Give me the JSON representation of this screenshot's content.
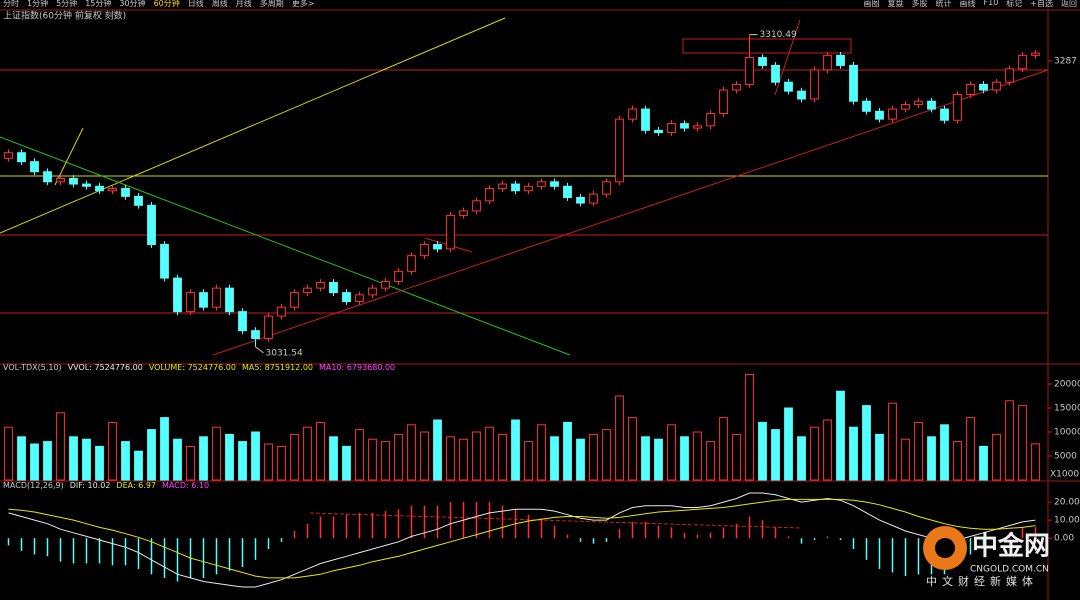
{
  "toolbar": {
    "periods": [
      "分时",
      "1分钟",
      "5分钟",
      "15分钟",
      "30分钟",
      "60分钟",
      "日线",
      "周线",
      "月线",
      "多周期",
      "更多>"
    ],
    "tools": [
      "画图",
      "复盘",
      "多股",
      "统计",
      "画线",
      "F10",
      "标记",
      "+自选",
      "返回"
    ]
  },
  "chart_data": [
    {
      "type": "candlestick",
      "title": "上证指数(60分钟 前复权 刻数)",
      "up_color": "#ff3232",
      "down_color": "#54ffff",
      "open": [
        3200,
        3205,
        3197,
        3188,
        3179,
        3182,
        3177,
        3175,
        3171,
        3173,
        3166,
        3158,
        3123,
        3093,
        3063,
        3080,
        3067,
        3084,
        3063,
        3046,
        3039,
        3059,
        3067,
        3080,
        3084,
        3089,
        3080,
        3072,
        3078,
        3084,
        3090,
        3099,
        3113,
        3123,
        3119,
        3149,
        3153,
        3162,
        3173,
        3177,
        3171,
        3175,
        3179,
        3175,
        3165,
        3160,
        3168,
        3179,
        3235,
        3244,
        3225,
        3223,
        3231,
        3227,
        3229,
        3240,
        3261,
        3266,
        3290,
        3283,
        3268,
        3260,
        3253,
        3279,
        3292,
        3283,
        3251,
        3242,
        3235,
        3244,
        3248,
        3251,
        3244,
        3234,
        3257,
        3266,
        3261,
        3268,
        3280,
        3292
      ],
      "high": [
        3208,
        3208,
        3200,
        3191,
        3185,
        3185,
        3180,
        3178,
        3176,
        3176,
        3169,
        3161,
        3126,
        3096,
        3083,
        3083,
        3087,
        3087,
        3066,
        3049,
        3062,
        3070,
        3083,
        3087,
        3092,
        3092,
        3083,
        3081,
        3087,
        3093,
        3102,
        3116,
        3126,
        3126,
        3152,
        3156,
        3165,
        3176,
        3180,
        3180,
        3178,
        3182,
        3182,
        3178,
        3168,
        3171,
        3182,
        3238,
        3247,
        3247,
        3228,
        3234,
        3234,
        3232,
        3243,
        3264,
        3269,
        3310.49,
        3293,
        3286,
        3271,
        3263,
        3282,
        3295,
        3295,
        3286,
        3254,
        3245,
        3247,
        3251,
        3254,
        3254,
        3247,
        3260,
        3269,
        3269,
        3271,
        3283,
        3295,
        3297
      ],
      "low": [
        3197,
        3194,
        3185,
        3176,
        3176,
        3174,
        3172,
        3168,
        3168,
        3163,
        3155,
        3120,
        3090,
        3060,
        3060,
        3064,
        3064,
        3060,
        3043,
        3031.54,
        3036,
        3056,
        3064,
        3077,
        3081,
        3077,
        3069,
        3069,
        3075,
        3081,
        3087,
        3096,
        3110,
        3116,
        3116,
        3146,
        3150,
        3159,
        3170,
        3168,
        3168,
        3172,
        3172,
        3162,
        3157,
        3157,
        3165,
        3176,
        3232,
        3222,
        3220,
        3220,
        3224,
        3224,
        3226,
        3237,
        3258,
        3263,
        3280,
        3265,
        3257,
        3250,
        3250,
        3276,
        3280,
        3248,
        3239,
        3232,
        3232,
        3241,
        3245,
        3241,
        3231,
        3231,
        3254,
        3258,
        3258,
        3265,
        3277,
        3289
      ],
      "close": [
        3205,
        3197,
        3188,
        3179,
        3182,
        3177,
        3175,
        3171,
        3173,
        3166,
        3158,
        3123,
        3093,
        3063,
        3080,
        3067,
        3084,
        3063,
        3046,
        3039,
        3059,
        3067,
        3080,
        3084,
        3089,
        3080,
        3072,
        3078,
        3084,
        3090,
        3099,
        3113,
        3123,
        3119,
        3149,
        3153,
        3162,
        3173,
        3177,
        3171,
        3175,
        3179,
        3175,
        3165,
        3160,
        3168,
        3179,
        3235,
        3244,
        3225,
        3223,
        3231,
        3227,
        3229,
        3240,
        3261,
        3266,
        3290,
        3283,
        3268,
        3260,
        3253,
        3279,
        3292,
        3283,
        3251,
        3242,
        3235,
        3244,
        3248,
        3251,
        3244,
        3234,
        3257,
        3266,
        3261,
        3268,
        3280,
        3292,
        3294
      ],
      "ylim": [
        3018,
        3320
      ],
      "yticks": [
        3287
      ],
      "annotations": [
        {
          "text": "3310.49",
          "value": 3310.49
        },
        {
          "text": "3031.54",
          "value": 3031.54
        }
      ]
    },
    {
      "type": "bar",
      "header": [
        "VOL-TDX(5,10)",
        "VVOL: 7524776.00",
        "VOLUME: 7524776.00",
        "MA5: 8751912.00",
        "MA10: 6793680.00"
      ],
      "unit_label": "X1000",
      "values": [
        11000,
        9000,
        7500,
        8000,
        14000,
        9000,
        8500,
        7000,
        12000,
        8000,
        6000,
        10500,
        13000,
        8500,
        7000,
        9000,
        11000,
        9500,
        8000,
        10000,
        7500,
        7000,
        9500,
        11000,
        12000,
        9000,
        7000,
        10500,
        8500,
        8000,
        9500,
        11500,
        10000,
        12500,
        9000,
        8500,
        10000,
        11000,
        9500,
        12500,
        8000,
        11500,
        9000,
        12000,
        8500,
        9500,
        10500,
        17500,
        13000,
        9000,
        8500,
        11500,
        9000,
        10000,
        8000,
        13000,
        9500,
        22000,
        12000,
        10500,
        15000,
        9000,
        11000,
        12500,
        18500,
        11000,
        15500,
        9500,
        16000,
        8500,
        12000,
        9000,
        11500,
        8000,
        13000,
        7000,
        9500,
        16500,
        15500,
        7524.776
      ],
      "ylim": [
        0,
        22500
      ],
      "yticks": [
        5000,
        10000,
        15000,
        20000
      ]
    },
    {
      "type": "macd",
      "header": [
        "MACD(12,26,9)",
        "DIF: 10.02",
        "DEA: 6.97",
        "MACD: 6.10"
      ],
      "up_color": "#ff3232",
      "down_color": "#54ffff",
      "values": [
        -4,
        -7,
        -9,
        -10,
        -13,
        -14,
        -14,
        -14,
        -15,
        -15,
        -17,
        -20,
        -22,
        -24,
        -22,
        -22,
        -20,
        -18,
        -16,
        -12,
        -6,
        -2,
        4,
        8,
        12,
        12,
        13,
        14,
        14,
        15,
        16,
        18,
        18,
        18,
        20,
        20,
        20,
        20,
        18,
        16,
        13,
        11,
        7,
        2,
        -2,
        -3,
        -2,
        5,
        9,
        9,
        7,
        6,
        3,
        2,
        3,
        6,
        8,
        12,
        10,
        6,
        1,
        -3,
        -1,
        1,
        -1,
        -6,
        -12,
        -17,
        -19,
        -21,
        -20,
        -20,
        -20,
        -15,
        -9,
        -4,
        0,
        3,
        6,
        6.1
      ],
      "series": [
        {
          "name": "DIF",
          "color": "#e8e8e8",
          "values": [
            14,
            12,
            10,
            8,
            5,
            3,
            1,
            -1,
            -3,
            -5,
            -8,
            -12,
            -16,
            -20,
            -22,
            -24,
            -25,
            -26,
            -27,
            -27,
            -25,
            -23,
            -20,
            -17,
            -14,
            -12,
            -10,
            -8,
            -6,
            -4,
            -2,
            1,
            3,
            5,
            8,
            10,
            12,
            14,
            15,
            16,
            16,
            16,
            15,
            13,
            11,
            10,
            10,
            14,
            17,
            18,
            18,
            18,
            17,
            17,
            18,
            20,
            22,
            25,
            25,
            24,
            22,
            20,
            21,
            22,
            21,
            18,
            14,
            10,
            7,
            4,
            2,
            0,
            -2,
            -1,
            1,
            3,
            5,
            7,
            9,
            10.02
          ]
        },
        {
          "name": "DEA",
          "color": "#e8e800",
          "values": [
            16,
            15.5,
            14.5,
            13,
            11.5,
            10,
            8,
            6,
            4.5,
            2.5,
            0.5,
            -2,
            -5,
            -8,
            -11,
            -13,
            -15,
            -17,
            -19,
            -21,
            -22,
            -22,
            -22,
            -21,
            -20,
            -18,
            -16.5,
            -15,
            -13,
            -11.5,
            -10,
            -8,
            -6,
            -4,
            -2,
            0,
            2,
            4,
            6,
            8,
            9.5,
            10.5,
            11.5,
            12,
            12,
            11.5,
            11,
            11.5,
            12.5,
            13.5,
            14.5,
            15,
            15.5,
            16,
            16.5,
            17,
            18,
            19,
            20,
            21,
            21.5,
            21.5,
            21.5,
            21.5,
            21.5,
            21,
            20,
            18.5,
            16.5,
            14.5,
            12,
            10,
            8,
            6.5,
            5.5,
            5,
            5,
            5.5,
            6,
            6.97
          ]
        }
      ],
      "ylim": [
        -32,
        30
      ],
      "yticks": [
        {
          "value": 20,
          "label": "20.00"
        },
        {
          "value": 10,
          "label": "10.00"
        },
        {
          "value": 0,
          "label": "0.00"
        }
      ]
    }
  ],
  "watermark": {
    "name": "中金网",
    "site": "CNGOLD.COM.CN",
    "tagline": "中文财经新媒体"
  }
}
